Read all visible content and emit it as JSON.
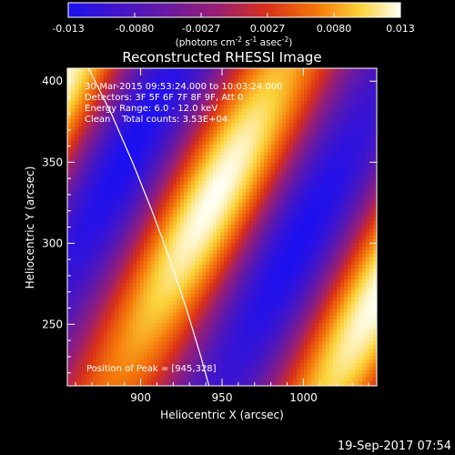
{
  "chart_data": {
    "type": "heatmap",
    "title": "Reconstructed RHESSI Image",
    "xlabel": "Heliocentric X (arcsec)",
    "ylabel": "Heliocentric Y (arcsec)",
    "xlim": [
      855,
      1045
    ],
    "ylim": [
      212,
      408
    ],
    "xticks": [
      900,
      950,
      1000
    ],
    "yticks": [
      250,
      300,
      350,
      400
    ],
    "colorbar": {
      "ticks": [
        "-0.013",
        "-0.0080",
        "-0.0027",
        "0.0027",
        "0.0080",
        "0.013"
      ],
      "range": [
        -0.013,
        0.013
      ],
      "unit_base": "(photons cm",
      "unit_exp1": "-2",
      "unit_mid": " s",
      "unit_exp2": "-1",
      "unit_end": " asec",
      "unit_exp3": "-2",
      "unit_close": ")"
    },
    "annotations": [
      "30-Mar-2015 09:53:24.000 to 10:03:24.000",
      "Detectors: 3F 5F 6F 7F 8F 9F, Att 0",
      "Energy Range: 6.0 - 12.0 keV",
      "Clean    Total counts: 3.53E+04"
    ],
    "peak_label": "Position of Peak = [945,328]",
    "peak": [
      945,
      328
    ],
    "limb_curve": [
      [
        868,
        408
      ],
      [
        882,
        380
      ],
      [
        895,
        350
      ],
      [
        907,
        320
      ],
      [
        918,
        290
      ],
      [
        928,
        260
      ],
      [
        937,
        230
      ],
      [
        942,
        212
      ]
    ]
  },
  "footer": {
    "timestamp": "19-Sep-2017 07:54"
  },
  "colors": {
    "background": "#000000",
    "axes": "#ffffff",
    "colormap": "blue-purple-red-yellow-white"
  }
}
